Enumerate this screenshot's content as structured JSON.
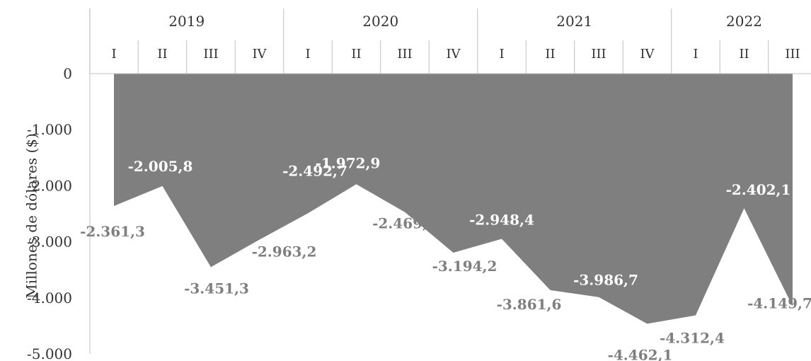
{
  "chart_data": {
    "type": "area",
    "ylabel": "Millones de dólares ($)",
    "ylim": [
      -5000,
      0
    ],
    "ytick_values": [
      0,
      -1000,
      -2000,
      -3000,
      -4000,
      -5000
    ],
    "ytick_labels": [
      "0",
      "-1.000",
      "-2.000",
      "-3.000",
      "-4.000",
      "-5.000"
    ],
    "years": [
      {
        "label": "2019",
        "quarters": [
          "I",
          "II",
          "III",
          "IV"
        ]
      },
      {
        "label": "2020",
        "quarters": [
          "I",
          "II",
          "III",
          "IV"
        ]
      },
      {
        "label": "2021",
        "quarters": [
          "I",
          "II",
          "III",
          "IV"
        ]
      },
      {
        "label": "2022",
        "quarters": [
          "I",
          "II",
          "III"
        ]
      }
    ],
    "values": [
      -2361.3,
      -2005.8,
      -3451.3,
      -2963.2,
      -2492.7,
      -1972.9,
      -2469.7,
      -3194.2,
      -2948.4,
      -3861.6,
      -3986.7,
      -4462.1,
      -4312.4,
      -2402.1,
      -4149.7
    ],
    "data_labels": [
      "-2.361,3",
      "-2.005,8",
      "-3.451,3",
      "-2.963,2",
      "-2.492,7",
      "-1.972,9",
      "-2.469,7",
      "-3.194,2",
      "-2.948,4",
      "-3.861,6",
      "-3.986,7",
      "-4.462,1",
      "-4.312,4",
      "-2.402,1",
      "-4.149,7"
    ],
    "colors": {
      "area": "#7f7f7f",
      "label_on_area": "#ffffff",
      "label_off_area": "#7f7f7f",
      "axis": "#bfbfbf",
      "text": "#333333"
    }
  }
}
